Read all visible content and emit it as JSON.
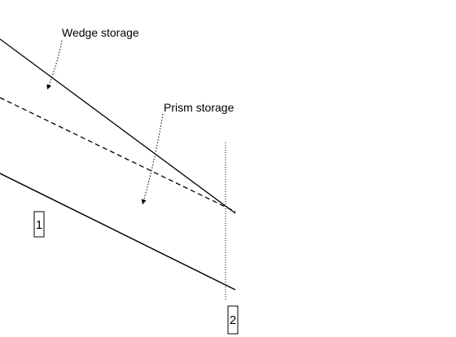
{
  "diagram": {
    "labels": {
      "wedge": "Wedge storage",
      "prism": "Prism storage"
    },
    "sections": {
      "upstream": "1",
      "downstream": "2"
    },
    "colors": {
      "line": "#000000",
      "background": "#ffffff"
    }
  }
}
